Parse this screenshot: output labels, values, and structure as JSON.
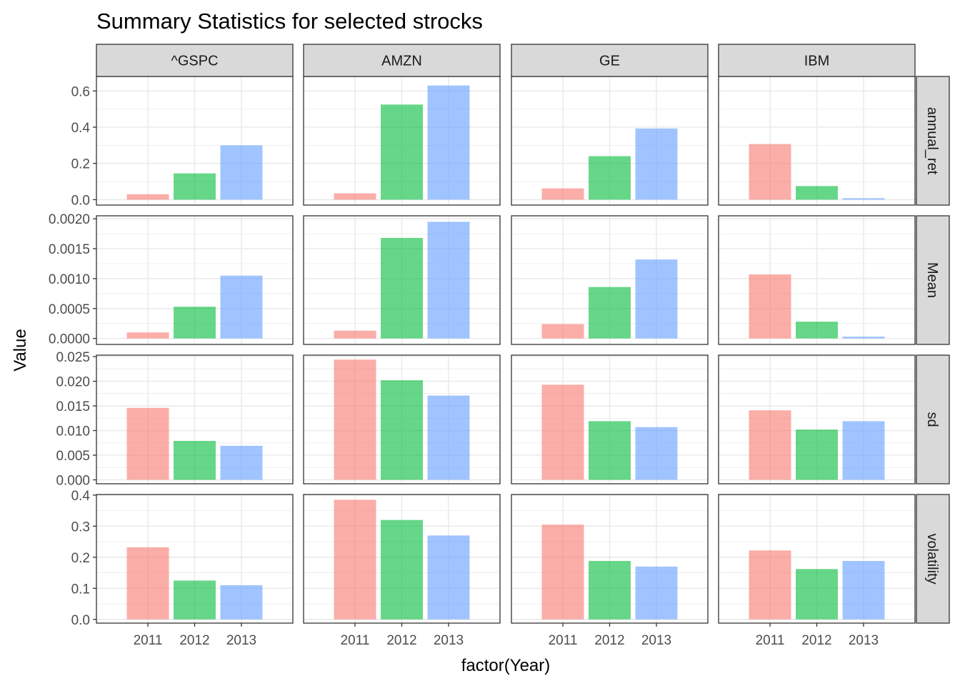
{
  "chart_data": {
    "type": "bar",
    "title": "Summary Statistics for selected strocks",
    "xlabel": "factor(Year)",
    "ylabel": "Value",
    "categories": [
      "2011",
      "2012",
      "2013"
    ],
    "category_colors": [
      "#F8766D",
      "#00BA38",
      "#619CFF"
    ],
    "bar_opacity": 0.6,
    "grid": true,
    "legend": "none",
    "facet_columns": [
      "^GSPC",
      "AMZN",
      "GE",
      "IBM"
    ],
    "facet_rows": [
      {
        "name": "annual_ret",
        "ylim": [
          -0.03,
          0.68
        ],
        "ticks": [
          0.0,
          0.2,
          0.4,
          0.6
        ],
        "tick_labels": [
          "0.0",
          "0.2",
          "0.4",
          "0.6"
        ],
        "values": {
          "^GSPC": [
            0.03,
            0.145,
            0.3
          ],
          "AMZN": [
            0.035,
            0.525,
            0.63
          ],
          "GE": [
            0.062,
            0.24,
            0.393
          ],
          "IBM": [
            0.307,
            0.075,
            0.008
          ]
        }
      },
      {
        "name": "Mean",
        "ylim": [
          -0.0001,
          0.00205
        ],
        "ticks": [
          0.0,
          0.0005,
          0.001,
          0.0015,
          0.002
        ],
        "tick_labels": [
          "0.0000",
          "0.0005",
          "0.0010",
          "0.0015",
          "0.0020"
        ],
        "values": {
          "^GSPC": [
            0.0001,
            0.00053,
            0.00105
          ],
          "AMZN": [
            0.00013,
            0.00168,
            0.00195
          ],
          "GE": [
            0.00024,
            0.00086,
            0.00132
          ],
          "IBM": [
            0.00107,
            0.00028,
            3e-05
          ]
        }
      },
      {
        "name": "sd",
        "ylim": [
          -0.0008,
          0.0253
        ],
        "ticks": [
          0.0,
          0.005,
          0.01,
          0.015,
          0.02,
          0.025
        ],
        "tick_labels": [
          "0.000",
          "0.005",
          "0.010",
          "0.015",
          "0.020",
          "0.025"
        ],
        "values": {
          "^GSPC": [
            0.0146,
            0.0079,
            0.0069
          ],
          "AMZN": [
            0.0244,
            0.0202,
            0.0171
          ],
          "GE": [
            0.0193,
            0.0119,
            0.0107
          ],
          "IBM": [
            0.0141,
            0.0102,
            0.0119
          ]
        }
      },
      {
        "name": "volatility",
        "ylim": [
          -0.012,
          0.402
        ],
        "ticks": [
          0.0,
          0.1,
          0.2,
          0.3,
          0.4
        ],
        "tick_labels": [
          "0.0",
          "0.1",
          "0.2",
          "0.3",
          "0.4"
        ],
        "values": {
          "^GSPC": [
            0.232,
            0.125,
            0.11
          ],
          "AMZN": [
            0.385,
            0.32,
            0.27
          ],
          "GE": [
            0.305,
            0.188,
            0.17
          ],
          "IBM": [
            0.222,
            0.162,
            0.188
          ]
        }
      }
    ]
  }
}
